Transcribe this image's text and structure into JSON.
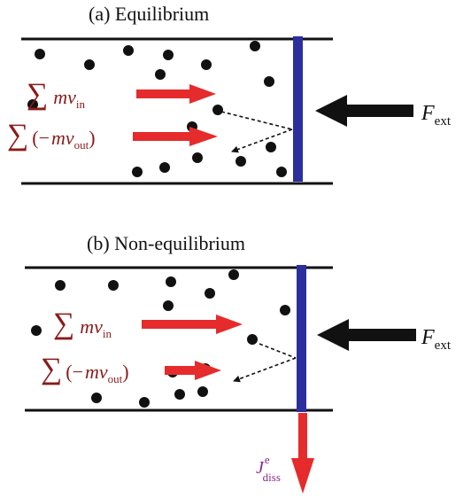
{
  "colors": {
    "wall": "#111111",
    "piston": "#2b2f9e",
    "momentum_arrow": "#e52b2b",
    "force_arrow": "#111111",
    "equation_text": "#8b1a1a",
    "dissipation_text": "#8a2a8a",
    "particle": "#111111"
  },
  "panels": [
    {
      "title": "(a) Equilibrium",
      "sum_in": {
        "symbol": "∑",
        "mv": "mv",
        "sub": "in"
      },
      "sum_out": {
        "symbol": "∑",
        "open": "(−",
        "mv": "mv",
        "sub": "out",
        "close": ")"
      },
      "force": {
        "letter": "F",
        "sub": "ext"
      }
    },
    {
      "title": "(b) Non-equilibrium",
      "sum_in": {
        "symbol": "∑",
        "mv": "mv",
        "sub": "in"
      },
      "sum_out": {
        "symbol": "∑",
        "open": "(−",
        "mv": "mv",
        "sub": "out",
        "close": ")"
      },
      "force": {
        "letter": "F",
        "sub": "ext"
      },
      "dissipation": {
        "letter": "J",
        "sup": "e",
        "sub": "diss"
      }
    }
  ]
}
